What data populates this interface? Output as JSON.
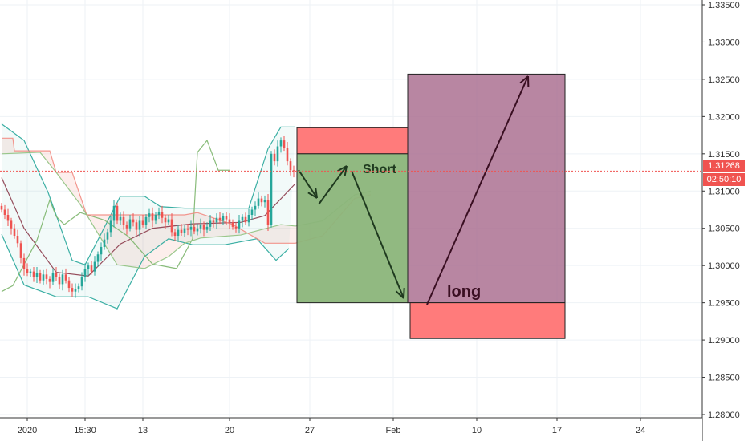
{
  "chart_data": {
    "type": "candlestick",
    "x_tick_labels": [
      {
        "label": "2020",
        "index": 8
      },
      {
        "label": "15:30",
        "index": 26
      },
      {
        "label": "13",
        "index": 44
      },
      {
        "label": "20",
        "index": 71
      },
      {
        "label": "27",
        "index": 96
      },
      {
        "label": "Feb",
        "index": 122
      },
      {
        "label": "10",
        "index": 148
      },
      {
        "label": "17",
        "index": 173
      },
      {
        "label": "24",
        "index": 199
      }
    ],
    "y_ticks": [
      1.335,
      1.33,
      1.325,
      1.32,
      1.315,
      1.31,
      1.305,
      1.3,
      1.295,
      1.29,
      1.285,
      1.28
    ],
    "ylim": [
      1.2795,
      1.3356
    ],
    "grid": true,
    "closes": [
      1.3075,
      1.3068,
      1.306,
      1.305,
      1.304,
      1.303,
      1.301,
      1.2995,
      1.299,
      1.2992,
      1.2985,
      1.299,
      1.298,
      1.2988,
      1.2982,
      1.2978,
      1.299,
      1.2985,
      1.2975,
      1.2988,
      1.298,
      1.297,
      1.2965,
      1.2968,
      1.2972,
      1.2985,
      1.2995,
      1.3,
      1.2992,
      1.3005,
      1.3015,
      1.3025,
      1.3035,
      1.3045,
      1.306,
      1.308,
      1.306,
      1.3065,
      1.3055,
      1.305,
      1.3062,
      1.3058,
      1.3048,
      1.306,
      1.3055,
      1.3065,
      1.307,
      1.306,
      1.3068,
      1.3072,
      1.3064,
      1.3058,
      1.3062,
      1.3045,
      1.304,
      1.3048,
      1.3044,
      1.305,
      1.3048,
      1.3052,
      1.3046,
      1.305,
      1.3055,
      1.3048,
      1.3052,
      1.306,
      1.3058,
      1.3064,
      1.306,
      1.3066,
      1.3062,
      1.3058,
      1.3052,
      1.305,
      1.306,
      1.3065,
      1.3058,
      1.3068,
      1.3075,
      1.308,
      1.309,
      1.3085,
      1.3088,
      1.3055,
      1.315,
      1.314,
      1.316,
      1.3168,
      1.3158,
      1.314,
      1.3128,
      1.3127
    ],
    "indicators": [
      {
        "id": "bb-upper",
        "color": "#26a69a",
        "points": [
          [
            0,
            1.319
          ],
          [
            7,
            1.3168
          ],
          [
            14.5,
            1.3098
          ],
          [
            22,
            1.3007
          ],
          [
            26,
            1.3001
          ],
          [
            37,
            1.3093
          ],
          [
            44.5,
            1.3093
          ],
          [
            49.5,
            1.3079
          ],
          [
            57,
            1.3077
          ],
          [
            69.5,
            1.3077
          ],
          [
            77,
            1.3077
          ],
          [
            83,
            1.3157
          ],
          [
            87,
            1.3186
          ],
          [
            91.5,
            1.3186
          ]
        ]
      },
      {
        "id": "bb-lower",
        "color": "#26a69a",
        "points": [
          [
            0,
            1.3042
          ],
          [
            7,
            1.2974
          ],
          [
            17,
            1.2958
          ],
          [
            27,
            1.2958
          ],
          [
            36,
            1.2942
          ],
          [
            44.5,
            1.3012
          ],
          [
            52,
            1.3036
          ],
          [
            59.5,
            1.3028
          ],
          [
            69.5,
            1.3028
          ],
          [
            79.5,
            1.3036
          ],
          [
            85.5,
            1.3007
          ],
          [
            89.5,
            1.3023
          ]
        ]
      },
      {
        "id": "bb-basis",
        "color": "#8b3a4a",
        "points": [
          [
            0,
            1.3118
          ],
          [
            7,
            1.305
          ],
          [
            17,
            1.2991
          ],
          [
            27,
            1.2986
          ],
          [
            37,
            1.3029
          ],
          [
            47,
            1.305
          ],
          [
            59.5,
            1.3056
          ],
          [
            74.5,
            1.3058
          ],
          [
            82,
            1.3067
          ],
          [
            91.5,
            1.311
          ]
        ]
      },
      {
        "id": "lagging-span",
        "color": "#7cb56b",
        "points": [
          [
            0,
            1.2965
          ],
          [
            3.5,
            1.2973
          ],
          [
            11,
            1.3034
          ],
          [
            15,
            1.3088
          ],
          [
            17,
            1.3066
          ],
          [
            19.5,
            1.3055
          ],
          [
            24.5,
            1.3071
          ],
          [
            32,
            1.3061
          ],
          [
            39.5,
            1.3039
          ],
          [
            47,
            1.3002
          ],
          [
            54.5,
            1.2996
          ],
          [
            59.5,
            1.3036
          ],
          [
            61,
            1.3152
          ],
          [
            64,
            1.3168
          ],
          [
            67.5,
            1.3128
          ],
          [
            71,
            1.3128
          ]
        ]
      },
      {
        "id": "senkou-b",
        "color": "#f28b82",
        "points": [
          [
            0,
            1.3171
          ],
          [
            3.5,
            1.3171
          ],
          [
            4,
            1.3154
          ],
          [
            15,
            1.3154
          ],
          [
            17,
            1.3125
          ],
          [
            22,
            1.3125
          ],
          [
            26.5,
            1.3068
          ],
          [
            57,
            1.3068
          ],
          [
            61,
            1.3071
          ],
          [
            72,
            1.3055
          ],
          [
            82,
            1.303
          ],
          [
            91.5,
            1.303
          ],
          [
            100,
            1.304
          ],
          [
            110,
            1.309
          ],
          [
            115,
            1.3095
          ]
        ]
      },
      {
        "id": "senkou-a",
        "color": "#8fc27f",
        "points": [
          [
            0,
            1.315
          ],
          [
            12,
            1.3152
          ],
          [
            17,
            1.3125
          ],
          [
            24.5,
            1.3082
          ],
          [
            36,
            1.3001
          ],
          [
            44.5,
            1.2996
          ],
          [
            52,
            1.3012
          ],
          [
            57,
            1.303
          ],
          [
            62,
            1.3037
          ],
          [
            74.5,
            1.3041
          ],
          [
            87,
            1.3055
          ],
          [
            91.5,
            1.3053
          ],
          [
            100,
            1.306
          ],
          [
            110,
            1.3095
          ],
          [
            115,
            1.31
          ]
        ]
      }
    ],
    "current_price": 1.31268,
    "current_price_label": "1.31268",
    "countdown_label": "02:50:10",
    "positions": [
      {
        "name": "short",
        "label": "Short",
        "entry": 1.295,
        "stop": 1.3185,
        "target_top": 1.315,
        "profit_color": "#8bb57a",
        "loss_color": "#ff7b7b"
      },
      {
        "name": "long",
        "label": "long",
        "entry": 1.295,
        "stop": 1.2902,
        "target": 1.3257,
        "profit_color": "#a86b8e",
        "loss_color": "#ff7b7b"
      }
    ],
    "colors": {
      "up": "#26a69a",
      "down": "#ef5350",
      "price_line": "#f05350"
    }
  }
}
